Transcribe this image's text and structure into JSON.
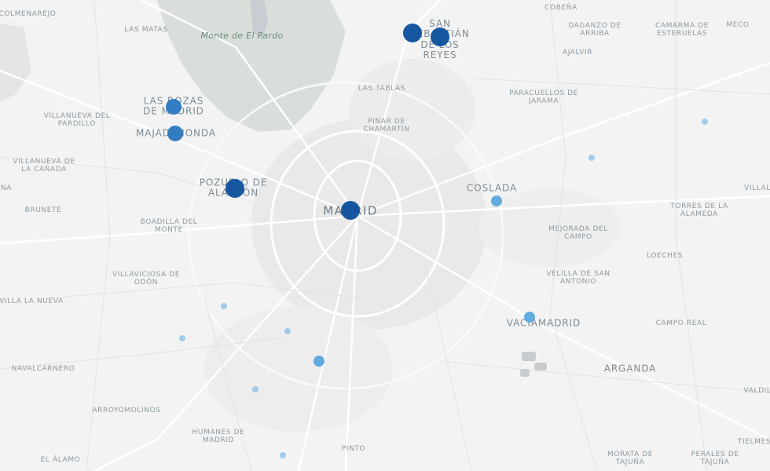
{
  "map": {
    "labels": [
      {
        "text": "COLMENAREJO",
        "size": "small"
      },
      {
        "text": "LAS MATAS",
        "size": "small"
      },
      {
        "text": "Monte de El Pardo",
        "size": "park"
      },
      {
        "text": "SAN\nSEBASTIÁN\nDE LOS\nREYES",
        "size": "mid"
      },
      {
        "text": "COBEÑA",
        "size": "small"
      },
      {
        "text": "DAGANZO DE\nARRIBA",
        "size": "small"
      },
      {
        "text": "CAMARMA DE\nESTERUELAS",
        "size": "small"
      },
      {
        "text": "MECO",
        "size": "small"
      },
      {
        "text": "AJALVIR",
        "size": "small"
      },
      {
        "text": "LAS TABLAS",
        "size": "small"
      },
      {
        "text": "PARACUELLOS DE\nJARAMA",
        "size": "small"
      },
      {
        "text": "LAS ROZAS\nDE MADRID",
        "size": "mid"
      },
      {
        "text": "VILLANUEVA DEL\nPARDILLO",
        "size": "small"
      },
      {
        "text": "PINAR DE\nCHAMARTÍN",
        "size": "small"
      },
      {
        "text": "MAJADAHONDA",
        "size": "mid"
      },
      {
        "text": "VILLANUEVA DE\nLA CAÑADA",
        "size": "small"
      },
      {
        "text": "POZUELO DE\nALARCÓN",
        "size": "mid"
      },
      {
        "text": "COSLADA",
        "size": "mid"
      },
      {
        "text": "VILLAL",
        "size": "small"
      },
      {
        "text": "NA",
        "size": "small"
      },
      {
        "text": "BRUNETE",
        "size": "small"
      },
      {
        "text": "MADRID",
        "size": "big"
      },
      {
        "text": "TORRES DE LA\nALAMEDA",
        "size": "small"
      },
      {
        "text": "BOADILLA DEL\nMONTE",
        "size": "small"
      },
      {
        "text": "MEJORADA DEL\nCAMPO",
        "size": "small"
      },
      {
        "text": "LOECHES",
        "size": "small"
      },
      {
        "text": "VILLAVICIOSA DE\nODÓN",
        "size": "small"
      },
      {
        "text": "VELILLA DE SAN\nANTONIO",
        "size": "small"
      },
      {
        "text": "VILLA LA NUEVA",
        "size": "small"
      },
      {
        "text": "VACIAMADRID",
        "size": "mid"
      },
      {
        "text": "CAMPO REAL",
        "size": "small"
      },
      {
        "text": "NAVALCARNERO",
        "size": "small"
      },
      {
        "text": "ARGANDA",
        "size": "mid"
      },
      {
        "text": "VALDIL",
        "size": "small"
      },
      {
        "text": "ARROYOMOLINOS",
        "size": "small"
      },
      {
        "text": "HUMANES DE\nMADRID",
        "size": "small"
      },
      {
        "text": "PINTO",
        "size": "small"
      },
      {
        "text": "EL ÁLAMO",
        "size": "small"
      },
      {
        "text": "MORATA DE\nTAJUÑA",
        "size": "small"
      },
      {
        "text": "PERALES DE\nTAJUÑA",
        "size": "small"
      },
      {
        "text": "TIELMES",
        "size": "small"
      }
    ],
    "markers": [
      {
        "size": "large",
        "color": "#0b4f9c"
      },
      {
        "size": "large",
        "color": "#0b4f9c"
      },
      {
        "size": "large",
        "color": "#0b4f9c"
      },
      {
        "size": "large",
        "color": "#0b4f9c"
      },
      {
        "size": "medium",
        "color": "#2a77c0"
      },
      {
        "size": "medium",
        "color": "#2a77c0"
      },
      {
        "size": "small",
        "color": "#5aa6dc"
      },
      {
        "size": "small",
        "color": "#5aa6dc"
      },
      {
        "size": "small",
        "color": "#5aa6dc"
      },
      {
        "size": "tiny",
        "color": "#9ccaec"
      },
      {
        "size": "tiny",
        "color": "#9ccaec"
      },
      {
        "size": "tiny",
        "color": "#9ccaec"
      },
      {
        "size": "tiny",
        "color": "#9ccaec"
      },
      {
        "size": "tiny",
        "color": "#9ccaec"
      },
      {
        "size": "tiny",
        "color": "#9ccaec"
      },
      {
        "size": "tiny",
        "color": "#9ccaec"
      }
    ]
  }
}
